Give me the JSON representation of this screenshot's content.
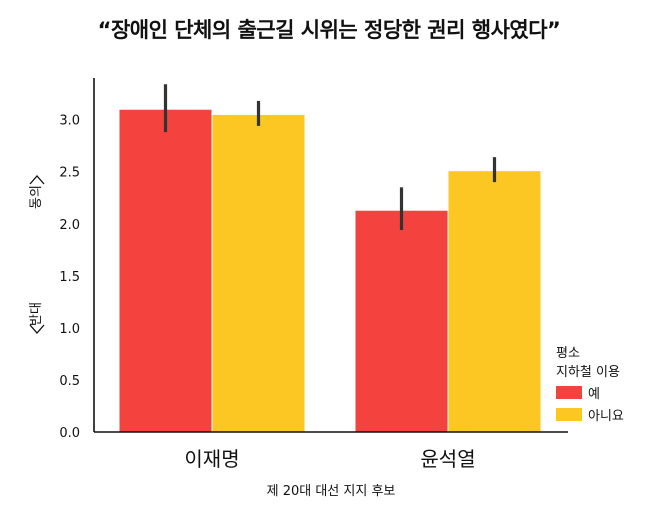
{
  "chart_data": {
    "type": "bar",
    "title": "“장애인 단체의 출근길 시위는 정당한 권리 행사였다”",
    "xlabel": "제 20대 대선 지지 후보",
    "ylabel_top": "동의",
    "ylabel_bottom": "반대",
    "ylim": [
      0,
      3.4
    ],
    "yticks": [
      "0.0",
      "0.5",
      "1.0",
      "1.5",
      "2.0",
      "2.5",
      "3.0"
    ],
    "categories": [
      "이재명",
      "윤석열"
    ],
    "legend_title": "평소\n지하철 이용",
    "legend_position": "right",
    "series": [
      {
        "name": "예",
        "color": "#f4433f",
        "values": [
          3.1,
          2.13
        ],
        "err_low": [
          2.88,
          1.94
        ],
        "err_high": [
          3.34,
          2.35
        ]
      },
      {
        "name": "아니요",
        "color": "#fcc623",
        "values": [
          3.05,
          2.51
        ],
        "err_low": [
          2.94,
          2.4
        ],
        "err_high": [
          3.18,
          2.64
        ]
      }
    ]
  }
}
